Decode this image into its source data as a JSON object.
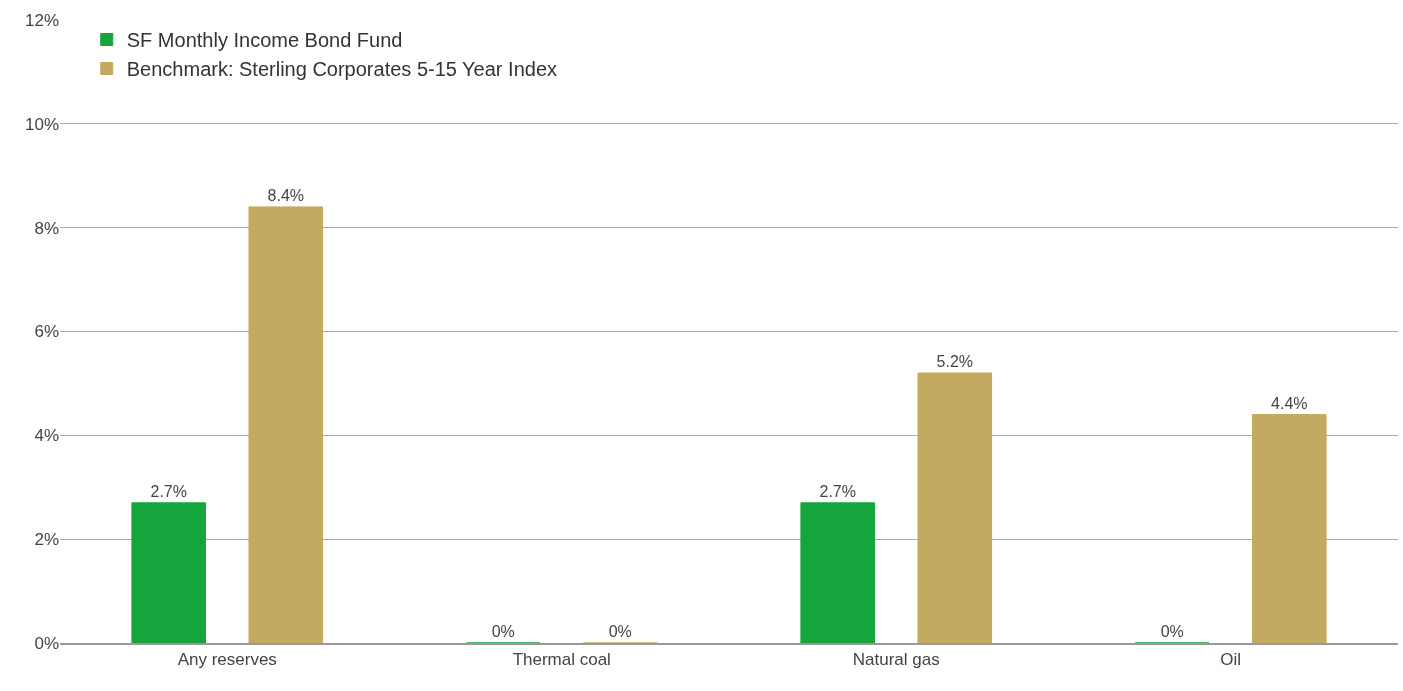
{
  "chart_data": {
    "type": "bar",
    "categories": [
      "Any reserves",
      "Thermal coal",
      "Natural gas",
      "Oil"
    ],
    "series": [
      {
        "name": "SF Monthly Income Bond Fund",
        "color": "#16a43c",
        "values": [
          2.7,
          0,
          2.7,
          0
        ],
        "value_labels": [
          "2.7%",
          "0%",
          "2.7%",
          "0%"
        ]
      },
      {
        "name": "Benchmark: Sterling Corporates 5-15 Year Index",
        "color": "#c4aa60",
        "values": [
          8.4,
          0,
          5.2,
          4.4
        ],
        "value_labels": [
          "8.4%",
          "0%",
          "5.2%",
          "4.4%"
        ]
      }
    ],
    "ylim": [
      0,
      12
    ],
    "yticks": [
      {
        "value": 0,
        "label": "0%"
      },
      {
        "value": 2,
        "label": "2%"
      },
      {
        "value": 4,
        "label": "4%"
      },
      {
        "value": 6,
        "label": "6%"
      },
      {
        "value": 8,
        "label": "8%"
      },
      {
        "value": 10,
        "label": "10%"
      },
      {
        "value": 12,
        "label": "12%"
      }
    ],
    "grid": "y",
    "legend": "top left"
  }
}
